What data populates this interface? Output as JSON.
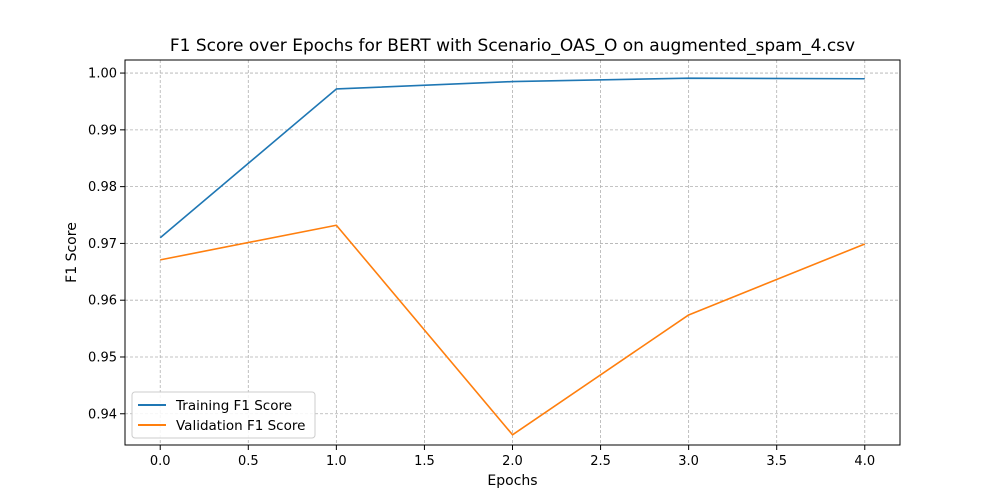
{
  "chart_data": {
    "type": "line",
    "title": "F1 Score over Epochs for BERT with Scenario_OAS_O on augmented_spam_4.csv",
    "xlabel": "Epochs",
    "ylabel": "F1 Score",
    "xlim": [
      -0.2,
      4.2
    ],
    "ylim": [
      0.9345,
      1.0023
    ],
    "xticks": [
      0.0,
      0.5,
      1.0,
      1.5,
      2.0,
      2.5,
      3.0,
      3.5,
      4.0
    ],
    "xtick_labels": [
      "0.0",
      "0.5",
      "1.0",
      "1.5",
      "2.0",
      "2.5",
      "3.0",
      "3.5",
      "4.0"
    ],
    "yticks": [
      0.94,
      0.95,
      0.96,
      0.97,
      0.98,
      0.99,
      1.0
    ],
    "ytick_labels": [
      "0.94",
      "0.95",
      "0.96",
      "0.97",
      "0.98",
      "0.99",
      "1.00"
    ],
    "grid": true,
    "legend_position": "lower-left",
    "x": [
      0,
      1,
      2,
      3,
      4
    ],
    "series": [
      {
        "name": "Training F1 Score",
        "color": "#1f77b4",
        "values": [
          0.971,
          0.9972,
          0.9985,
          0.9991,
          0.999
        ]
      },
      {
        "name": "Validation F1 Score",
        "color": "#ff7f0e",
        "values": [
          0.9671,
          0.9732,
          0.9363,
          0.9574,
          0.9699
        ]
      }
    ]
  }
}
